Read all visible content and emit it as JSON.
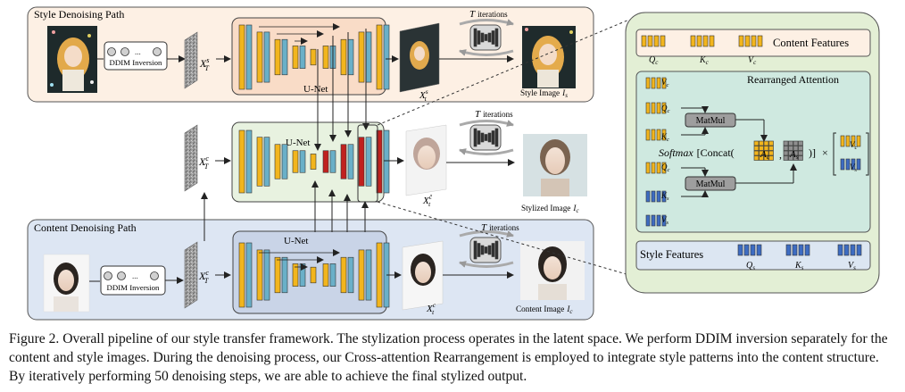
{
  "style_path": {
    "title": "Style Denoising Path",
    "ddim_label": "DDIM Inversion",
    "noise_label": "X",
    "noise_sup": "s",
    "noise_sub": "T",
    "unet_label": "U-Net",
    "latent_label": "X",
    "latent_sup": "s",
    "latent_sub": "t",
    "iterations_T": "T",
    "iterations_label": "iterations",
    "output_label": "Style Image",
    "output_var": "I",
    "output_sub": "s"
  },
  "stylized_path": {
    "noise_label": "X",
    "noise_sup": "c",
    "noise_sub": "T",
    "unet_label": "U-Net",
    "latent_label": "X",
    "latent_sup": "ĉ",
    "latent_sub": "t",
    "iterations_T": "T",
    "iterations_label": "iterations",
    "output_label": "Stylized Image",
    "output_var": "I",
    "output_sub": "c"
  },
  "content_path": {
    "title": "Content Denoising Path",
    "ddim_label": "DDIM Inversion",
    "noise_label": "X",
    "noise_sup": "c",
    "noise_sub": "T",
    "unet_label": "U-Net",
    "latent_label": "X",
    "latent_sup": "c",
    "latent_sub": "t",
    "iterations_T": "T",
    "iterations_label": "iterations",
    "output_label": "Content Image",
    "output_var": "I",
    "output_sub": "c"
  },
  "attention_panel": {
    "content_features_label": "Content Features",
    "q_label": "Q",
    "k_label": "K",
    "v_label": "V",
    "c_sub": "c",
    "s_sub": "s",
    "rearranged_label": "Rearranged Attention",
    "matmul_label": "MatMul",
    "softmax_label": "Softmax",
    "concat_label": "[Concat(",
    "a_label": "A",
    "comma": ",",
    "close_bracket": ")]",
    "times": "×",
    "style_features_label": "Style Features"
  },
  "colors": {
    "style_bg": "#fdf0e4",
    "content_bg": "#dde6f3",
    "stylized_bg": "#eaf3e3",
    "panel_bg": "#e3efd5",
    "rearranged_bg": "#cfe9e0",
    "feature_bg": "#dce6f2",
    "yellow": "#f2b51d",
    "blue": "#3d6cc2",
    "red": "#c0211e",
    "teal": "#6ab0c8",
    "grey": "#8f8f8f"
  },
  "caption": "Figure 2. Overall pipeline of our style transfer framework. The stylization process operates in the latent space. We perform DDIM inversion separately for the content and style images. During the denoising process, our Cross-attention Rearrangement is employed to integrate style patterns into the content structure. By iteratively performing 50 denoising steps, we are able to achieve the final stylized output."
}
